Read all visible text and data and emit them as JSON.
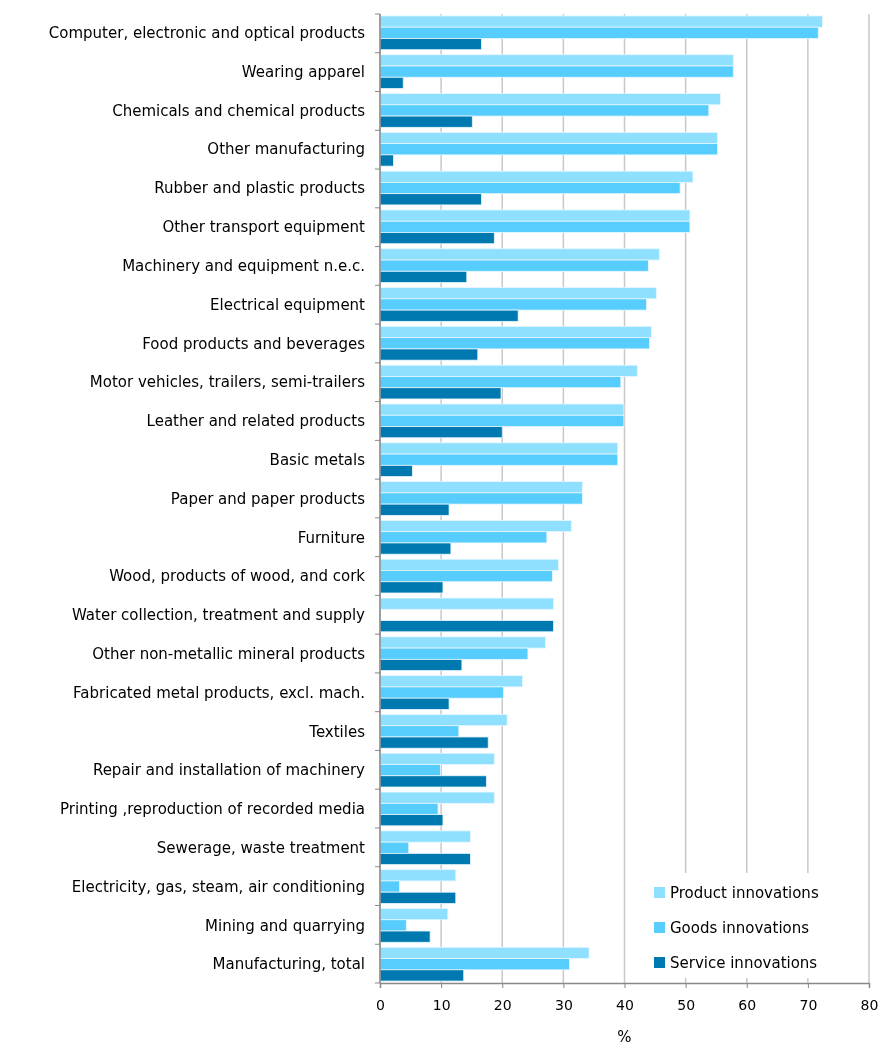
{
  "chart_data": {
    "type": "bar",
    "orientation": "horizontal",
    "xlabel": "%",
    "categories": [
      "Computer, electronic and optical products",
      "Wearing apparel",
      "Chemicals and chemical products",
      "Other manufacturing",
      "Rubber and plastic products",
      "Other transport equipment",
      "Machinery and equipment n.e.c.",
      "Electrical equipment",
      "Food products and beverages",
      "Motor vehicles, trailers, semi-trailers",
      "Leather and related products",
      "Basic metals",
      "Paper and paper products",
      "Furniture",
      "Wood, products of wood, and cork",
      "Water collection, treatment and supply",
      "Other non-metallic mineral products",
      "Fabricated metal products, excl. mach.",
      "Textiles",
      "Repair and installation of machinery",
      "Printing ,reproduction of recorded media",
      "Sewerage, waste treatment",
      "Electricity, gas, steam, air conditioning",
      "Mining and quarrying",
      "Manufacturing, total"
    ],
    "series": [
      {
        "name": "Product innovations",
        "color": "#8fdfff",
        "values": [
          72.4,
          57.8,
          55.7,
          55.2,
          51.2,
          50.7,
          45.7,
          45.2,
          44.4,
          42.1,
          39.9,
          38.9,
          33.1,
          31.3,
          29.2,
          28.4,
          27.1,
          23.3,
          20.8,
          18.7,
          18.7,
          14.8,
          12.4,
          11.1,
          34.2
        ]
      },
      {
        "name": "Goods innovations",
        "color": "#57cdfe",
        "values": [
          71.7,
          57.8,
          53.8,
          55.2,
          49.1,
          50.7,
          43.9,
          43.6,
          44.1,
          39.4,
          39.9,
          38.9,
          33.1,
          27.3,
          28.2,
          null,
          24.2,
          20.2,
          12.9,
          9.9,
          9.5,
          4.7,
          3.2,
          4.3,
          31.0
        ]
      },
      {
        "name": "Service innovations",
        "color": "#0079b0",
        "values": [
          16.6,
          3.8,
          15.1,
          2.2,
          16.6,
          18.7,
          14.2,
          22.6,
          16.0,
          19.8,
          20.0,
          5.3,
          11.3,
          11.6,
          10.3,
          28.4,
          13.4,
          11.3,
          17.7,
          17.4,
          10.3,
          14.8,
          12.4,
          8.2,
          13.7
        ]
      }
    ],
    "xlim": [
      0,
      80
    ],
    "xticks": [
      0,
      10,
      20,
      30,
      40,
      50,
      60,
      70,
      80
    ],
    "grid": "x",
    "legend": "bottom right"
  }
}
